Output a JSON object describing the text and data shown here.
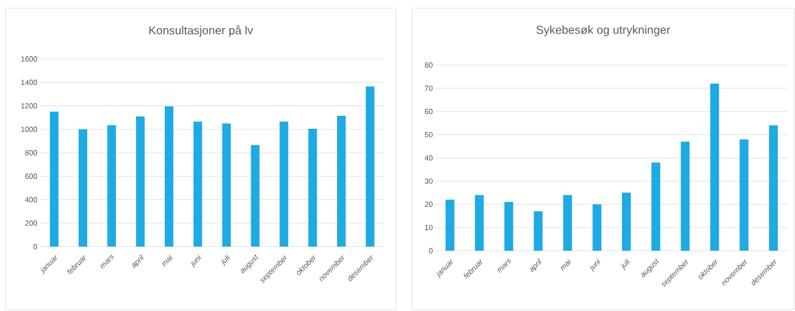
{
  "chart_data": [
    {
      "type": "bar",
      "title": "Konsultasjoner på lv",
      "categories": [
        "januar",
        "februar",
        "mars",
        "april",
        "mai",
        "juni",
        "juli",
        "august",
        "september",
        "oktober",
        "november",
        "desember"
      ],
      "values": [
        1150,
        1000,
        1035,
        1110,
        1195,
        1065,
        1050,
        865,
        1065,
        1005,
        1115,
        1365
      ],
      "color": "#1eaae2",
      "ylim": [
        0,
        1600
      ],
      "yticks": [
        0,
        200,
        400,
        600,
        800,
        1000,
        1200,
        1400,
        1600
      ],
      "grid": "y"
    },
    {
      "type": "bar",
      "title": "Sykebesøk og utrykninger",
      "categories": [
        "januar",
        "februar",
        "mars",
        "april",
        "mai",
        "juni",
        "juli",
        "august",
        "september",
        "oktober",
        "november",
        "desember"
      ],
      "values": [
        22,
        24,
        21,
        17,
        24,
        20,
        25,
        38,
        47,
        72,
        48,
        54
      ],
      "color": "#1eaae2",
      "ylim": [
        0,
        80
      ],
      "yticks": [
        0,
        10,
        20,
        30,
        40,
        50,
        60,
        70,
        80
      ],
      "grid": "y"
    }
  ]
}
